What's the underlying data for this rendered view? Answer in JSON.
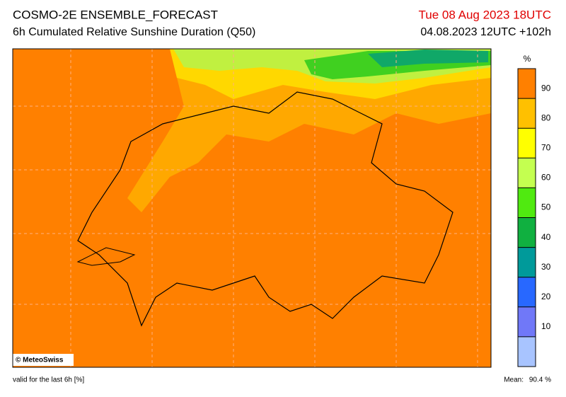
{
  "header": {
    "title": "COSMO-2E ENSEMBLE_FORECAST",
    "subtitle": "6h Cumulated Relative Sunshine Duration (Q50)",
    "valid_time": "Tue 08 Aug 2023 18UTC",
    "run_time": "04.08.2023 12UTC +102h"
  },
  "map": {
    "credit": "© MeteoSwiss"
  },
  "colorbar": {
    "unit": "%",
    "range": [
      0,
      100
    ],
    "ticks": [
      10,
      20,
      30,
      40,
      50,
      60,
      70,
      80,
      90
    ],
    "colors": [
      "#a8c4ff",
      "#7078f8",
      "#2868ff",
      "#009a9a",
      "#10b040",
      "#50ea10",
      "#c4ff50",
      "#ffff00",
      "#ffc000",
      "#ff8000"
    ]
  },
  "footer": {
    "note": "valid for the last 6h [%]",
    "mean_label": "Mean:",
    "mean_value": "90.4 %"
  }
}
